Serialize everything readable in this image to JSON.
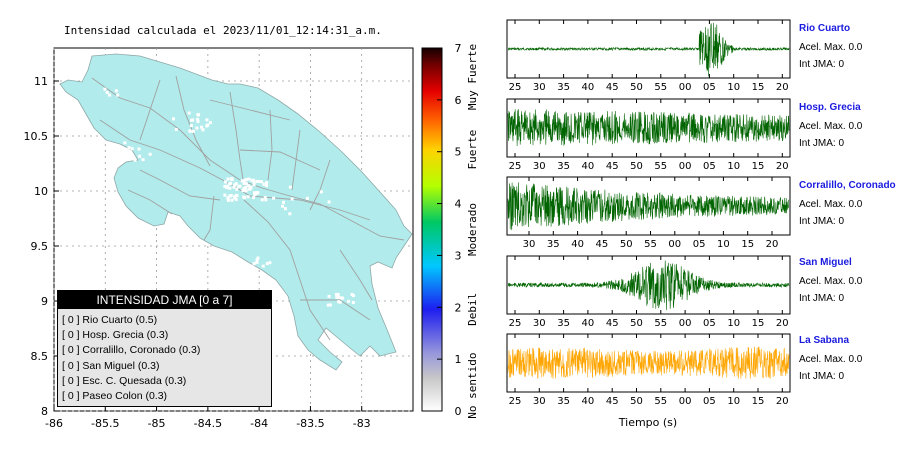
{
  "map": {
    "title": "Intensidad calculada el 2023/11/01_12:14:31_a.m.",
    "x_ticks": [
      "-86",
      "-85.5",
      "-85",
      "-84.5",
      "-84",
      "-83.5",
      "-83"
    ],
    "y_ticks": [
      "11",
      "10.5",
      "10",
      "9.5",
      "9",
      "8.5",
      "8"
    ],
    "xlim": [
      -86,
      -82.5
    ],
    "ylim": [
      8,
      11.3
    ],
    "land_color": "#b2ebeb",
    "border_color": "#a0a0a0"
  },
  "colorbar": {
    "ticks": [
      "0",
      "1",
      "2",
      "3",
      "4",
      "5",
      "6",
      "7"
    ],
    "labels": [
      "No sentido",
      "Debil",
      "Moderado",
      "Fuerte",
      "Muy Fuerte"
    ]
  },
  "legend": {
    "title": "INTENSIDAD JMA [0 a 7]",
    "items": [
      "[ 0 ]  Rio Cuarto (0.5)",
      "[ 0 ]  Hosp. Grecia (0.3)",
      "[ 0 ]  Corralillo, Coronado (0.3)",
      "[ 0 ]  San Miguel (0.3)",
      "[ 0 ]  Esc. C. Quesada (0.3)",
      "[ 0 ]  Paseo Colon (0.3)"
    ]
  },
  "waveforms": {
    "xlabel": "Tiempo (s)",
    "panels": [
      {
        "station": "Rio Cuarto",
        "acel": "Acel. Max. 0.0",
        "int": "Int JMA: 0",
        "color": "#006400",
        "ticks": [
          "25",
          "30",
          "35",
          "40",
          "45",
          "50",
          "55",
          "00",
          "05",
          "10",
          "15",
          "20"
        ]
      },
      {
        "station": "Hosp. Grecia",
        "acel": "Acel. Max. 0.0",
        "int": "Int JMA: 0",
        "color": "#006400",
        "ticks": [
          "25",
          "30",
          "35",
          "40",
          "45",
          "50",
          "55",
          "00",
          "05",
          "10",
          "15",
          "20"
        ]
      },
      {
        "station": "Corralillo, Coronado",
        "acel": "Acel. Max. 0.0",
        "int": "Int JMA: 0",
        "color": "#006400",
        "ticks": [
          "30",
          "35",
          "40",
          "45",
          "50",
          "55",
          "00",
          "05",
          "10",
          "15",
          "20"
        ]
      },
      {
        "station": "San Miguel",
        "acel": "Acel. Max. 0.0",
        "int": "Int JMA: 0",
        "color": "#006400",
        "ticks": [
          "25",
          "30",
          "35",
          "40",
          "45",
          "50",
          "55",
          "00",
          "05",
          "10",
          "15",
          "20"
        ]
      },
      {
        "station": "La Sabana",
        "acel": "Acel. Max. 0.0",
        "int": "Int JMA: 0",
        "color": "#ffa500",
        "ticks": [
          "25",
          "30",
          "35",
          "40",
          "45",
          "50",
          "55",
          "00",
          "05",
          "10",
          "15",
          "20"
        ]
      }
    ]
  },
  "chart_data": [
    {
      "type": "scatter",
      "title": "Intensidad calculada el 2023/11/01_12:14:31_a.m.",
      "xlim": [
        -86,
        -82.5
      ],
      "ylim": [
        8,
        11.3
      ],
      "colorbar_range": [
        0,
        7
      ],
      "legend_title": "INTENSIDAD JMA [0 a 7]",
      "stations": [
        {
          "name": "Rio Cuarto",
          "intensity": 0.5
        },
        {
          "name": "Hosp. Grecia",
          "intensity": 0.3
        },
        {
          "name": "Corralillo, Coronado",
          "intensity": 0.3
        },
        {
          "name": "San Miguel",
          "intensity": 0.3
        },
        {
          "name": "Esc. C. Quesada",
          "intensity": 0.3
        },
        {
          "name": "Paseo Colon",
          "intensity": 0.3
        }
      ]
    },
    {
      "type": "line",
      "xlabel": "Tiempo (s)",
      "series": [
        {
          "name": "Rio Cuarto",
          "acel_max": 0.0,
          "int_jma": 0
        },
        {
          "name": "Hosp. Grecia",
          "acel_max": 0.0,
          "int_jma": 0
        },
        {
          "name": "Corralillo, Coronado",
          "acel_max": 0.0,
          "int_jma": 0
        },
        {
          "name": "San Miguel",
          "acel_max": 0.0,
          "int_jma": 0
        },
        {
          "name": "La Sabana",
          "acel_max": 0.0,
          "int_jma": 0
        }
      ]
    }
  ]
}
